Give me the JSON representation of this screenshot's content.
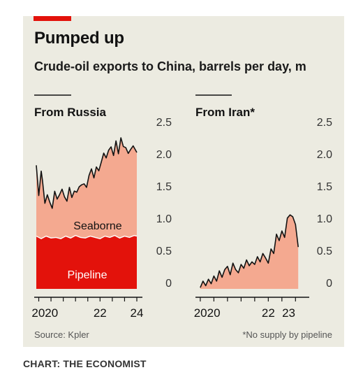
{
  "title": "Pumped up",
  "subtitle": "Crude-oil exports to China, barrels per day, m",
  "source": "Source: Kpler",
  "footnote": "*No supply by pipeline",
  "credit": "CHART: THE ECONOMIST",
  "colors": {
    "brand": "#e3120b",
    "pipeline": "#e3120b",
    "seaborne": "#f4a990",
    "background": "#ecebe1"
  },
  "chart_data": [
    {
      "type": "area",
      "title": "From Russia",
      "stacked": true,
      "ylim": [
        0,
        2.5
      ],
      "yticks": [
        "0",
        "0.5",
        "1.0",
        "1.5",
        "2.0",
        "2.5"
      ],
      "xlim": [
        2019.9,
        2024.0
      ],
      "xtick_labels": [
        {
          "x": 2020.25,
          "label": "2020"
        },
        {
          "x": 2022.5,
          "label": "22"
        },
        {
          "x": 2024.0,
          "label": "24"
        }
      ],
      "grid": false,
      "series": [
        {
          "name": "Pipeline",
          "color": "#e3120b",
          "x": [
            2019.9,
            2020.1,
            2020.3,
            2020.5,
            2020.7,
            2020.9,
            2021.1,
            2021.3,
            2021.5,
            2021.7,
            2021.9,
            2022.1,
            2022.3,
            2022.5,
            2022.7,
            2022.9,
            2023.1,
            2023.3,
            2023.5,
            2023.7,
            2023.9,
            2024.0
          ],
          "values": [
            0.82,
            0.78,
            0.82,
            0.79,
            0.8,
            0.78,
            0.82,
            0.79,
            0.83,
            0.8,
            0.79,
            0.82,
            0.8,
            0.78,
            0.82,
            0.8,
            0.83,
            0.79,
            0.82,
            0.8,
            0.83,
            0.82
          ]
        },
        {
          "name": "Seaborne",
          "color": "#f4a990",
          "x": [
            2019.9,
            2020.0,
            2020.1,
            2020.15,
            2020.25,
            2020.35,
            2020.45,
            2020.55,
            2020.65,
            2020.75,
            2020.85,
            2020.95,
            2021.05,
            2021.15,
            2021.25,
            2021.35,
            2021.45,
            2021.55,
            2021.65,
            2021.75,
            2021.85,
            2021.95,
            2022.05,
            2022.15,
            2022.25,
            2022.35,
            2022.45,
            2022.55,
            2022.65,
            2022.75,
            2022.85,
            2022.95,
            2023.05,
            2023.15,
            2023.25,
            2023.35,
            2023.45,
            2023.55,
            2023.65,
            2023.75,
            2023.85,
            2023.95,
            2024.0
          ],
          "values": [
            1.1,
            0.65,
            1.05,
            0.9,
            0.52,
            0.65,
            0.55,
            0.46,
            0.72,
            0.6,
            0.68,
            0.76,
            0.62,
            0.55,
            0.78,
            0.62,
            0.7,
            0.68,
            0.78,
            0.82,
            0.84,
            0.78,
            0.95,
            1.05,
            0.92,
            1.1,
            1.05,
            1.18,
            1.3,
            1.22,
            1.35,
            1.4,
            1.25,
            1.48,
            1.3,
            1.55,
            1.4,
            1.38,
            1.3,
            1.36,
            1.4,
            1.33,
            1.3
          ]
        }
      ],
      "annotations": [
        "Seaborne",
        "Pipeline"
      ]
    },
    {
      "type": "area",
      "title": "From Iran*",
      "ylim": [
        0,
        2.5
      ],
      "yticks": [
        "0",
        "0.5",
        "1.0",
        "1.5",
        "2.0",
        "2.5"
      ],
      "xlim": [
        2019.9,
        2023.8
      ],
      "xtick_labels": [
        {
          "x": 2020.25,
          "label": "2020"
        },
        {
          "x": 2022.5,
          "label": "22"
        },
        {
          "x": 2023.25,
          "label": "23"
        }
      ],
      "grid": false,
      "series": [
        {
          "name": "From Iran",
          "color": "#f4a990",
          "x": [
            2020.0,
            2020.1,
            2020.2,
            2020.3,
            2020.4,
            2020.5,
            2020.6,
            2020.7,
            2020.8,
            2020.9,
            2021.0,
            2021.1,
            2021.2,
            2021.3,
            2021.4,
            2021.5,
            2021.6,
            2021.7,
            2021.8,
            2021.9,
            2022.0,
            2022.1,
            2022.2,
            2022.3,
            2022.4,
            2022.5,
            2022.6,
            2022.7,
            2022.8,
            2022.9,
            2023.0,
            2023.1,
            2023.2,
            2023.3,
            2023.4,
            2023.5,
            2023.6
          ],
          "values": [
            0.02,
            0.12,
            0.05,
            0.15,
            0.08,
            0.2,
            0.12,
            0.28,
            0.18,
            0.3,
            0.35,
            0.22,
            0.4,
            0.3,
            0.25,
            0.38,
            0.32,
            0.45,
            0.36,
            0.42,
            0.38,
            0.5,
            0.42,
            0.55,
            0.48,
            0.4,
            0.62,
            0.55,
            0.85,
            0.75,
            0.9,
            0.8,
            1.1,
            1.15,
            1.12,
            1.0,
            0.65
          ]
        }
      ]
    }
  ]
}
